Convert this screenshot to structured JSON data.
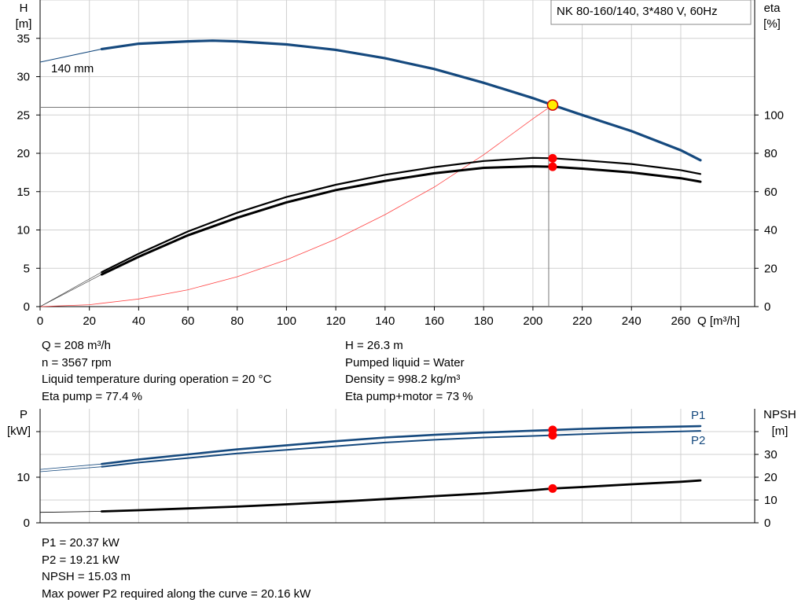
{
  "chart_data": [
    {
      "type": "line",
      "title": "NK 80-160/140, 3*480 V, 60Hz",
      "ylabel_left": "H",
      "ylabel_left_unit": "[m]",
      "ylabel_right": "eta",
      "ylabel_right_unit": "[%]",
      "xlabel": "Q [m³/h]",
      "xlim": [
        0,
        290
      ],
      "ylim": [
        0,
        40
      ],
      "ylim_right": [
        0,
        160
      ],
      "x_ticks": [
        "0",
        "20",
        "40",
        "60",
        "80",
        "100",
        "120",
        "140",
        "160",
        "180",
        "200",
        "220",
        "240",
        "260"
      ],
      "y_ticks": [
        "0",
        "5",
        "10",
        "15",
        "20",
        "25",
        "30",
        "35"
      ],
      "y_right_ticks": [
        "0",
        "20",
        "40",
        "60",
        "80",
        "100"
      ],
      "grid": true,
      "curve_label": "140 mm",
      "head_curve": {
        "x": [
          0,
          25,
          40,
          60,
          70,
          80,
          100,
          120,
          140,
          160,
          180,
          200,
          208,
          220,
          240,
          260,
          268
        ],
        "y": [
          31.9,
          33.6,
          34.3,
          34.6,
          34.7,
          34.6,
          34.2,
          33.5,
          32.4,
          31.0,
          29.2,
          27.2,
          26.3,
          25.0,
          22.9,
          20.4,
          19.1
        ]
      },
      "eta_pump_motor": {
        "x": [
          25,
          40,
          60,
          80,
          100,
          120,
          140,
          160,
          180,
          200,
          208,
          220,
          240,
          260,
          268
        ],
        "y": [
          16.8,
          26,
          37.2,
          46.4,
          54.4,
          60.8,
          65.6,
          69.6,
          72.4,
          73.2,
          73,
          72,
          70,
          67,
          65.2
        ]
      },
      "eta_pump": {
        "x": [
          25,
          40,
          60,
          80,
          100,
          120,
          140,
          160,
          180,
          200,
          208,
          220,
          240,
          260,
          268
        ],
        "y": [
          18,
          27.6,
          39.2,
          49,
          57.2,
          63.6,
          68.8,
          72.8,
          76,
          77.6,
          77.4,
          76.4,
          74.4,
          71.2,
          69.2
        ]
      },
      "system_curve": {
        "x": [
          0,
          20,
          40,
          60,
          80,
          100,
          120,
          140,
          160,
          180,
          200,
          208
        ],
        "y": [
          0,
          0.25,
          1.0,
          2.2,
          3.9,
          6.1,
          8.8,
          12.0,
          15.6,
          19.8,
          24.5,
          26.3
        ]
      },
      "duty_point": {
        "x": 208,
        "y": 26.3
      },
      "reference_head": 26
    },
    {
      "type": "line",
      "ylabel_left": "P",
      "ylabel_left_unit": "[kW]",
      "ylabel_right": "NPSH",
      "ylabel_right_unit": "[m]",
      "xlim": [
        0,
        290
      ],
      "ylim": [
        0,
        25
      ],
      "ylim_right": [
        0,
        50
      ],
      "y_ticks": [
        "0",
        "10"
      ],
      "y_right_ticks": [
        "0",
        "10",
        "20",
        "30"
      ],
      "grid": true,
      "series": [
        {
          "name": "P1",
          "x": [
            0,
            25,
            40,
            60,
            80,
            100,
            120,
            140,
            160,
            180,
            200,
            208,
            220,
            240,
            260,
            268
          ],
          "y": [
            11.7,
            12.9,
            13.9,
            15.0,
            16.1,
            17.0,
            17.9,
            18.7,
            19.3,
            19.8,
            20.2,
            20.37,
            20.6,
            20.9,
            21.1,
            21.2
          ]
        },
        {
          "name": "P2",
          "x": [
            0,
            25,
            40,
            60,
            80,
            100,
            120,
            140,
            160,
            180,
            200,
            208,
            220,
            240,
            260,
            268
          ],
          "y": [
            11.2,
            12.3,
            13.2,
            14.2,
            15.2,
            16.0,
            16.8,
            17.6,
            18.2,
            18.7,
            19.05,
            19.21,
            19.45,
            19.8,
            20.05,
            20.16
          ]
        },
        {
          "name": "NPSH",
          "x": [
            0,
            25,
            40,
            60,
            80,
            100,
            120,
            140,
            160,
            180,
            200,
            208,
            220,
            240,
            260,
            268
          ],
          "y": [
            4.6,
            5.0,
            5.5,
            6.3,
            7.1,
            8.1,
            9.2,
            10.4,
            11.7,
            12.9,
            14.3,
            15.03,
            15.7,
            16.9,
            18.0,
            18.6
          ]
        }
      ],
      "duty_points": [
        {
          "series": "P1",
          "x": 208,
          "y": 20.37
        },
        {
          "series": "P2",
          "x": 208,
          "y": 19.21
        },
        {
          "series": "NPSH",
          "x": 208,
          "y": 15.03
        }
      ]
    }
  ],
  "info_left": [
    "Q = 208 m³/h",
    "n = 3567 rpm",
    "Liquid temperature during operation = 20 °C",
    "Eta pump = 77.4 %"
  ],
  "info_right": [
    "H = 26.3 m",
    "Pumped liquid = Water",
    "Density = 998.2 kg/m³",
    "Eta pump+motor = 73 %"
  ],
  "info_bottom": [
    "P1 = 20.37 kW",
    "P2 = 19.21 kW",
    "NPSH = 15.03 m",
    "Max power P2 required along the curve = 20.16 kW"
  ],
  "colors": {
    "head": "#15497e",
    "eta": "#000000",
    "system": "#ff4444",
    "point": "#ff0000",
    "duty": "#ffee00",
    "grid": "#d0d0d0"
  }
}
